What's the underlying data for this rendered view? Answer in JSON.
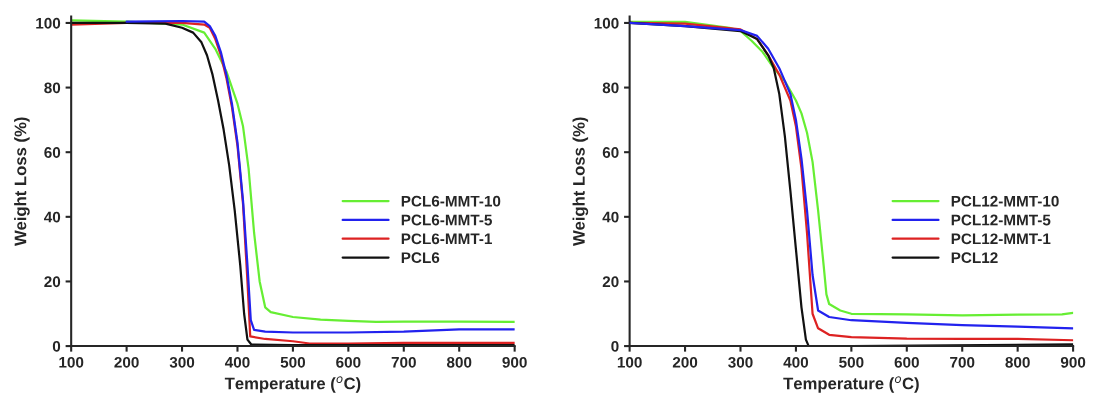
{
  "chart_data": [
    {
      "type": "line",
      "xlabel": "Temperature ($^{o}$C)",
      "ylabel": "Weight Loss (%)",
      "xlim": [
        100,
        900
      ],
      "ylim": [
        0,
        102
      ],
      "xticks": [
        100,
        200,
        300,
        400,
        500,
        600,
        700,
        800,
        900
      ],
      "yticks": [
        0,
        20,
        40,
        60,
        80,
        100
      ],
      "legend": "right",
      "grid": false,
      "series": [
        {
          "name": "PCL6-MMT-10",
          "color": "#66ee33",
          "x": [
            100,
            200,
            300,
            340,
            360,
            380,
            400,
            410,
            420,
            425,
            430,
            440,
            450,
            460,
            500,
            550,
            600,
            650,
            700,
            800,
            900
          ],
          "values": [
            100.8,
            100.4,
            99.5,
            97,
            92,
            85,
            75,
            68,
            55,
            45,
            35,
            20,
            12,
            10.5,
            9,
            8.2,
            7.8,
            7.5,
            7.6,
            7.6,
            7.5
          ]
        },
        {
          "name": "PCL6-MMT-5",
          "color": "#2222ee",
          "x": [
            200,
            300,
            340,
            350,
            360,
            370,
            380,
            390,
            400,
            410,
            418,
            424,
            430,
            450,
            500,
            600,
            700,
            800,
            900
          ],
          "values": [
            100.4,
            100.6,
            100.4,
            99,
            96,
            91,
            84,
            75,
            63,
            45,
            25,
            8,
            5,
            4.5,
            4.2,
            4.2,
            4.5,
            5.2,
            5.2
          ]
        },
        {
          "name": "PCL6-MMT-1",
          "color": "#dd2222",
          "x": [
            100,
            200,
            300,
            340,
            350,
            360,
            370,
            380,
            390,
            400,
            410,
            418,
            423,
            450,
            500,
            530,
            600,
            700,
            900
          ],
          "values": [
            99.5,
            100,
            100,
            99.5,
            98.5,
            95,
            90,
            83,
            74,
            62,
            44,
            20,
            3,
            2.2,
            1.5,
            0.8,
            0.8,
            1,
            1
          ]
        },
        {
          "name": "PCL6",
          "color": "#111111",
          "x": [
            100,
            200,
            270,
            300,
            320,
            335,
            345,
            355,
            365,
            375,
            385,
            395,
            405,
            412,
            418,
            425,
            500,
            900
          ],
          "values": [
            100,
            100,
            99.8,
            98.5,
            97,
            94,
            90,
            84,
            76,
            67,
            56,
            42,
            25,
            10,
            2,
            0.5,
            0.3,
            0.3
          ]
        }
      ]
    },
    {
      "type": "line",
      "xlabel": "Temperature ($^{o}$C)",
      "ylabel": "Weight Loss (%)",
      "xlim": [
        100,
        900
      ],
      "ylim": [
        0,
        102
      ],
      "xticks": [
        100,
        200,
        300,
        400,
        500,
        600,
        700,
        800,
        900
      ],
      "yticks": [
        0,
        20,
        40,
        60,
        80,
        100
      ],
      "legend": "right",
      "grid": false,
      "series": [
        {
          "name": "PCL12-MMT-10",
          "color": "#66ee33",
          "x": [
            100,
            200,
            280,
            300,
            320,
            340,
            360,
            380,
            390,
            400,
            410,
            420,
            430,
            440,
            450,
            455,
            460,
            480,
            500,
            600,
            700,
            800,
            880,
            900
          ],
          "values": [
            100.3,
            100.3,
            98.5,
            97.5,
            94.5,
            91,
            86,
            82,
            79,
            76,
            72,
            66,
            57,
            42,
            25,
            16,
            13,
            11,
            10,
            9.8,
            9.5,
            9.7,
            9.8,
            10.3
          ]
        },
        {
          "name": "PCL12-MMT-5",
          "color": "#2222ee",
          "x": [
            100,
            200,
            300,
            330,
            350,
            370,
            390,
            400,
            410,
            420,
            430,
            440,
            460,
            500,
            600,
            700,
            800,
            900
          ],
          "values": [
            100,
            99,
            97.8,
            96,
            92,
            86,
            78,
            70,
            58,
            42,
            22,
            11,
            9,
            8,
            7.2,
            6.5,
            6,
            5.5
          ]
        },
        {
          "name": "PCL12-MMT-1",
          "color": "#dd2222",
          "x": [
            100,
            200,
            300,
            330,
            350,
            370,
            390,
            400,
            410,
            420,
            430,
            440,
            460,
            500,
            600,
            700,
            800,
            900
          ],
          "values": [
            100,
            99.8,
            98,
            95,
            90,
            84,
            76,
            68,
            55,
            35,
            10,
            5.5,
            3.5,
            2.8,
            2.3,
            2.2,
            2.2,
            1.8
          ]
        },
        {
          "name": "PCL12",
          "color": "#111111",
          "x": [
            100,
            200,
            300,
            330,
            350,
            360,
            370,
            380,
            390,
            400,
            410,
            418,
            423,
            500,
            900
          ],
          "values": [
            100,
            99,
            97.5,
            95,
            90,
            86,
            78,
            65,
            48,
            30,
            12,
            2,
            0,
            0,
            0.5
          ]
        }
      ]
    }
  ]
}
